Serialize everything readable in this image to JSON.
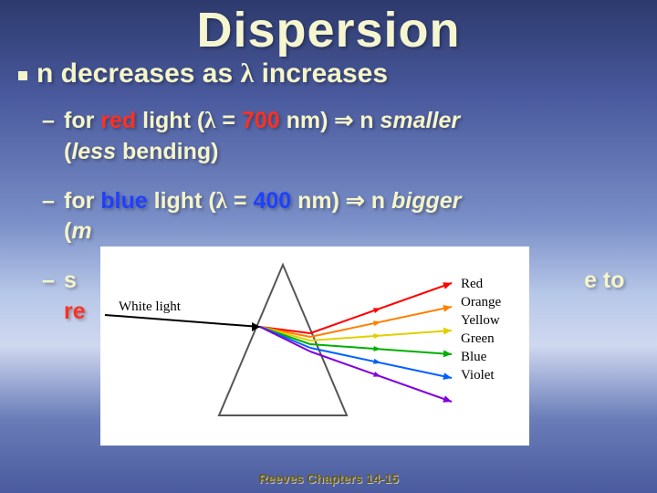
{
  "title": "Dispersion",
  "main": {
    "pre": "n",
    "mid": " decreases as ",
    "lam": "λ",
    "post": " increases"
  },
  "sub1": {
    "dash": "–",
    "t1": "for ",
    "red_word": "red",
    "t2": " light  (",
    "lam": "λ",
    "eq": " = ",
    "val": "700",
    "unit": " nm) ",
    "arrow": "⇒",
    "t3": "  n ",
    "result": "smaller",
    "paren": "(",
    "paren_it": "less ",
    "paren_rest": "bending)"
  },
  "sub2": {
    "dash": "–",
    "t1": "for ",
    "blue_word": "blue",
    "t2": " light  (",
    "lam": "λ",
    "eq": " = ",
    "val": "400",
    "unit": " nm) ",
    "arrow": "⇒",
    "t3": "  n  ",
    "result": "bigger",
    "paren": "(",
    "paren_it": "m"
  },
  "sub3": {
    "dash": "–",
    "t1": "s",
    "t2": "e to",
    "re": "re"
  },
  "prism": {
    "white_label": "White light",
    "labels": [
      "Red",
      "Orange",
      "Yellow",
      "Green",
      "Blue",
      "Violet"
    ],
    "colors": [
      "#ff0000",
      "#ff8000",
      "#e0d000",
      "#00b000",
      "#0060ff",
      "#8000e0"
    ],
    "tri_fill": "#ffffff",
    "tri_stroke": "#555555",
    "bg": "#ffffff"
  },
  "footer": "Reeves Chapters 14-15"
}
